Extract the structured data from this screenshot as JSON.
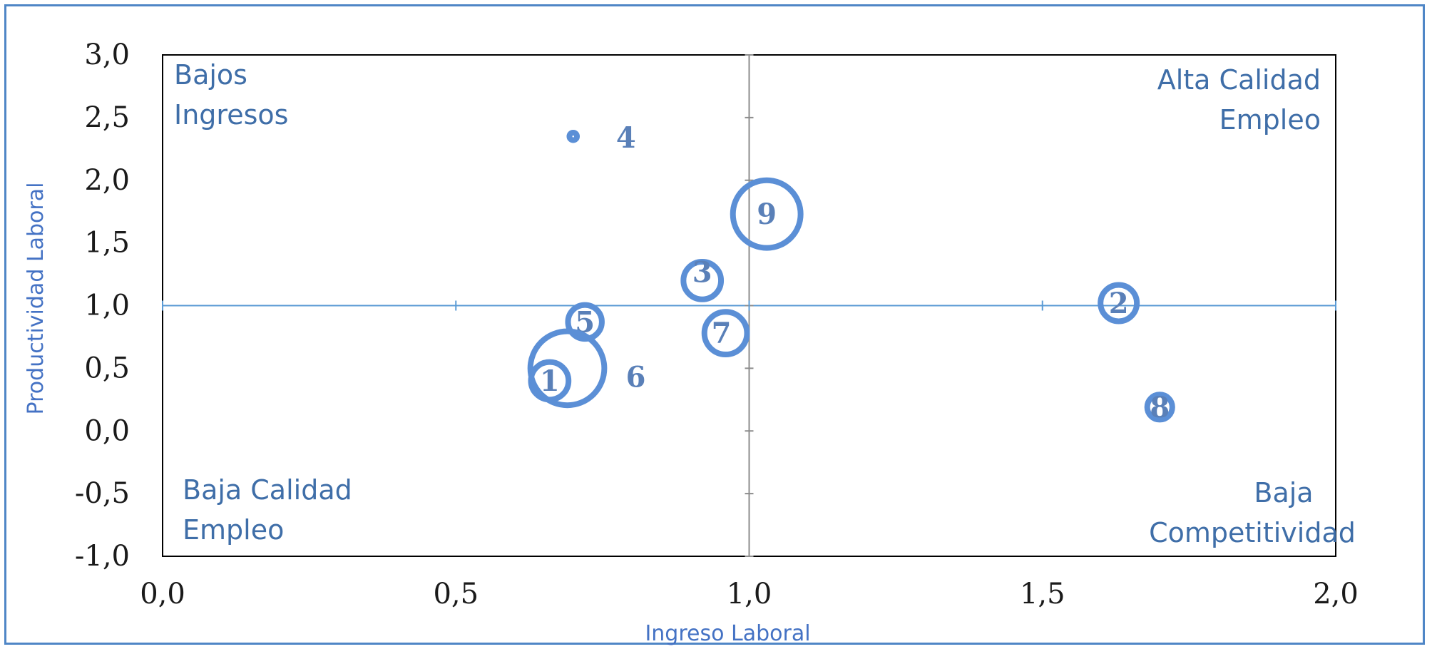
{
  "chart_data": {
    "type": "bubble",
    "xlabel": "Ingreso Laboral",
    "ylabel": "Productividad Laboral",
    "xlim": [
      0.0,
      2.0
    ],
    "ylim": [
      -1.0,
      3.0
    ],
    "x_ticks": [
      "0,0",
      "0,5",
      "1,0",
      "1,5",
      "2,0"
    ],
    "y_ticks": [
      "3,0",
      "2,5",
      "2,0",
      "1,5",
      "1,0",
      "0,5",
      "0,0",
      "-0,5",
      "-1,0"
    ],
    "reference_lines": {
      "x": 1.0,
      "y": 1.0
    },
    "quadrant_labels": {
      "top_left": [
        "Bajos",
        "Ingresos"
      ],
      "top_right": [
        "Alta Calidad",
        "Empleo"
      ],
      "bottom_left": [
        "Baja Calidad",
        "Empleo"
      ],
      "bottom_right": [
        "Baja",
        "Competitividad"
      ]
    },
    "points": [
      {
        "label": "1",
        "x": 0.66,
        "y": 0.4,
        "size": 0.3
      },
      {
        "label": "2",
        "x": 1.63,
        "y": 1.02,
        "size": 0.29
      },
      {
        "label": "3",
        "x": 0.92,
        "y": 1.2,
        "size": 0.3
      },
      {
        "label": "4",
        "x": 0.7,
        "y": 2.35,
        "size": 0.06
      },
      {
        "label": "5",
        "x": 0.72,
        "y": 0.87,
        "size": 0.27
      },
      {
        "label": "6",
        "x": 0.69,
        "y": 0.5,
        "size": 0.59
      },
      {
        "label": "7",
        "x": 0.96,
        "y": 0.78,
        "size": 0.34
      },
      {
        "label": "8",
        "x": 1.7,
        "y": 0.19,
        "size": 0.2
      },
      {
        "label": "9",
        "x": 1.03,
        "y": 1.73,
        "size": 0.54
      }
    ],
    "grid": false,
    "bubble_color": "#5b8fd6"
  }
}
